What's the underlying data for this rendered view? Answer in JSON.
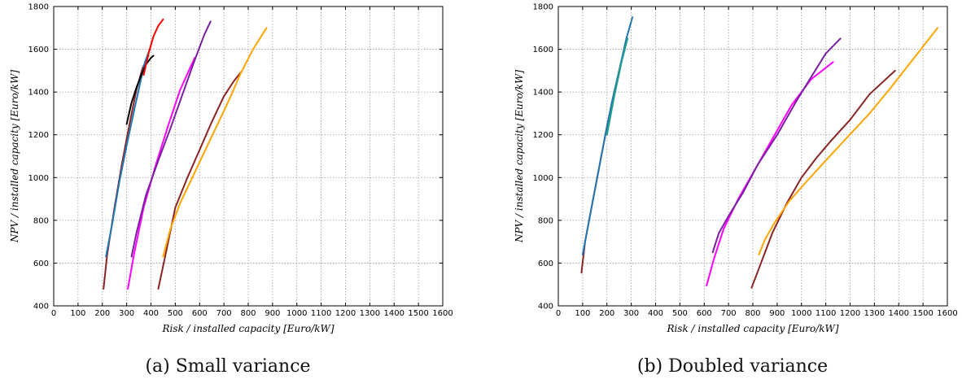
{
  "chart_data": [
    {
      "type": "line",
      "caption": "(a) Small variance",
      "xlabel": "Risk / installed capacity [Euro/kW]",
      "ylabel": "NPV / installed capacity [Euro/kW]",
      "xlim": [
        0,
        1600
      ],
      "ylim": [
        400,
        1800
      ],
      "xticks": [
        0,
        100,
        200,
        300,
        400,
        500,
        600,
        700,
        800,
        900,
        1000,
        1100,
        1200,
        1300,
        1400,
        1500,
        1600
      ],
      "yticks": [
        400,
        600,
        800,
        1000,
        1200,
        1400,
        1600,
        1800
      ],
      "grid": true,
      "series": [
        {
          "color": "#8b2323",
          "x": [
            205,
            220,
            250,
            280,
            310,
            340,
            365,
            390
          ],
          "y": [
            480,
            640,
            860,
            1060,
            1240,
            1410,
            1510,
            1570
          ]
        },
        {
          "color": "#1f77b4",
          "x": [
            215,
            240,
            270,
            300,
            330,
            355,
            375,
            395
          ],
          "y": [
            630,
            780,
            980,
            1150,
            1310,
            1440,
            1540,
            1600
          ]
        },
        {
          "color": "#000000",
          "x": [
            300,
            320,
            340,
            360,
            380,
            400,
            410
          ],
          "y": [
            1250,
            1350,
            1420,
            1480,
            1530,
            1560,
            1570
          ]
        },
        {
          "color": "#ff0000",
          "x": [
            370,
            390,
            410,
            430,
            450
          ],
          "y": [
            1480,
            1580,
            1660,
            1710,
            1740
          ]
        },
        {
          "color": "#ff00ff",
          "x": [
            305,
            330,
            370,
            420,
            470,
            520,
            560,
            580
          ],
          "y": [
            480,
            640,
            860,
            1060,
            1240,
            1410,
            1510,
            1560
          ]
        },
        {
          "color": "#7b1fa2",
          "x": [
            320,
            340,
            380,
            430,
            480,
            530,
            580,
            620,
            645
          ],
          "y": [
            630,
            740,
            920,
            1080,
            1230,
            1390,
            1550,
            1670,
            1730
          ]
        },
        {
          "color": "#8b2323",
          "x": [
            430,
            460,
            500,
            550,
            600,
            650,
            700,
            740,
            775
          ],
          "y": [
            480,
            640,
            860,
            1000,
            1130,
            1260,
            1380,
            1450,
            1500
          ]
        },
        {
          "color": "#ffa500",
          "x": [
            450,
            480,
            520,
            570,
            620,
            670,
            720,
            770,
            820,
            875
          ],
          "y": [
            630,
            760,
            880,
            1000,
            1120,
            1240,
            1360,
            1490,
            1600,
            1700
          ]
        }
      ]
    },
    {
      "type": "line",
      "caption": "(b) Doubled variance",
      "xlabel": "Risk / installed capacity [Euro/kW]",
      "ylabel": "NPV / installed capacity [Euro/kW]",
      "xlim": [
        0,
        1600
      ],
      "ylim": [
        400,
        1800
      ],
      "xticks": [
        0,
        100,
        200,
        300,
        400,
        500,
        600,
        700,
        800,
        900,
        1000,
        1100,
        1200,
        1300,
        1400,
        1500,
        1600
      ],
      "yticks": [
        400,
        600,
        800,
        1000,
        1200,
        1400,
        1600,
        1800
      ],
      "grid": true,
      "series": [
        {
          "color": "#8b2323",
          "x": [
            95,
            110,
            140,
            170,
            200,
            230,
            255
          ],
          "y": [
            555,
            700,
            880,
            1060,
            1240,
            1400,
            1520
          ]
        },
        {
          "color": "#1f77b4",
          "x": [
            100,
            130,
            160,
            190,
            220,
            250,
            280,
            305
          ],
          "y": [
            640,
            820,
            1000,
            1180,
            1350,
            1500,
            1650,
            1750
          ]
        },
        {
          "color": "#1f9e89",
          "x": [
            200,
            230,
            260,
            285
          ],
          "y": [
            1200,
            1380,
            1540,
            1650
          ]
        },
        {
          "color": "#ff00ff",
          "x": [
            610,
            640,
            680,
            740,
            800,
            880,
            960,
            1040,
            1130
          ],
          "y": [
            495,
            620,
            760,
            900,
            1020,
            1180,
            1340,
            1460,
            1540
          ]
        },
        {
          "color": "#7b1fa2",
          "x": [
            635,
            660,
            700,
            760,
            820,
            900,
            980,
            1040,
            1100,
            1160
          ],
          "y": [
            650,
            740,
            820,
            930,
            1060,
            1200,
            1360,
            1470,
            1580,
            1650
          ]
        },
        {
          "color": "#8b2323",
          "x": [
            795,
            840,
            880,
            940,
            1000,
            1060,
            1120,
            1200,
            1280,
            1385
          ],
          "y": [
            485,
            620,
            740,
            880,
            1000,
            1090,
            1170,
            1270,
            1390,
            1500
          ]
        },
        {
          "color": "#ffa500",
          "x": [
            825,
            850,
            890,
            950,
            1020,
            1100,
            1190,
            1280,
            1360,
            1450,
            1560
          ],
          "y": [
            640,
            710,
            790,
            890,
            980,
            1080,
            1190,
            1300,
            1410,
            1540,
            1700
          ]
        }
      ]
    }
  ]
}
